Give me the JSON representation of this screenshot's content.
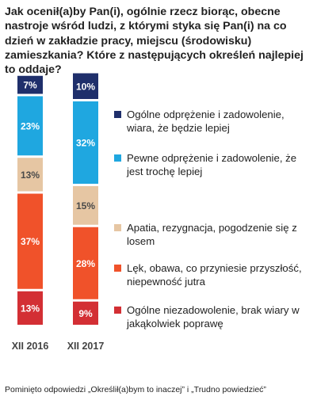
{
  "question": "Jak ocenił(a)by Pan(i), ogólnie rzecz biorąc, obecne nastroje wśród ludzi, z którymi styka się Pan(i) na co dzień w zakładzie pracy, miejscu (środowisku) zamieszkania? Które z następujących określeń najlepiej to oddaje?",
  "footnote": "Pominięto odpowiedzi „Określił(a)bym to inaczej” i „Trudno powiedzieć”",
  "chart_data": {
    "type": "bar",
    "stacked": true,
    "orientation": "vertical",
    "categories": [
      "XII 2016",
      "XII 2017"
    ],
    "series": [
      {
        "name": "Ogólne odprężenie i zadowolenie, wiara, że będzie lepiej",
        "color": "#1f2f6b",
        "values": [
          7,
          10
        ],
        "labels": [
          "7%",
          "10%"
        ]
      },
      {
        "name": "Pewne odprężenie i zadowolenie, że jest trochę lepiej",
        "color": "#1fa7e0",
        "values": [
          23,
          32
        ],
        "labels": [
          "23%",
          "32%"
        ]
      },
      {
        "name": "Apatia, rezygnacja, pogodzenie się z losem",
        "color": "#e6c6a3",
        "values": [
          13,
          15
        ],
        "labels": [
          "13%",
          "15%"
        ]
      },
      {
        "name": "Lęk, obawa, co przyniesie przyszłość, niepewność jutra",
        "color": "#f0522a",
        "values": [
          37,
          28
        ],
        "labels": [
          "37%",
          "28%"
        ]
      },
      {
        "name": "Ogólne niezadowolenie, brak wiary w jakąkolwiek poprawę",
        "color": "#d32f34",
        "values": [
          13,
          9
        ],
        "labels": [
          "13%",
          "9%"
        ]
      }
    ]
  }
}
